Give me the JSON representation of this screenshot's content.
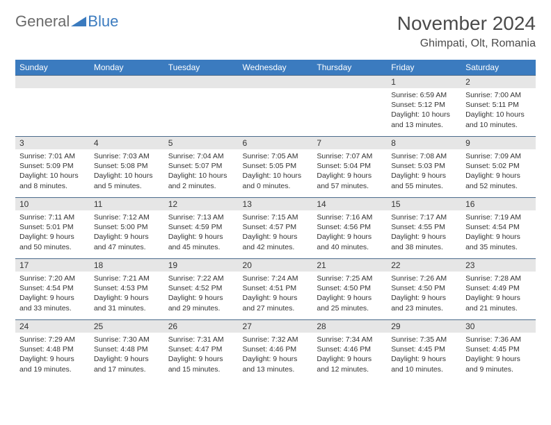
{
  "logo": {
    "word1": "General",
    "word2": "Blue"
  },
  "title": {
    "month": "November 2024",
    "location": "Ghimpati, Olt, Romania"
  },
  "weekdays": [
    "Sunday",
    "Monday",
    "Tuesday",
    "Wednesday",
    "Thursday",
    "Friday",
    "Saturday"
  ],
  "colors": {
    "header_bg": "#3b7bbf",
    "header_text": "#ffffff",
    "daynum_bg": "#e6e6e6",
    "daynum_border": "#4a6a8a",
    "body_text": "#333333",
    "logo_gray": "#6a6a6a",
    "logo_blue": "#3b7bbf",
    "page_bg": "#ffffff"
  },
  "weeks": [
    [
      null,
      null,
      null,
      null,
      null,
      {
        "n": "1",
        "sr": "Sunrise: 6:59 AM",
        "ss": "Sunset: 5:12 PM",
        "dl": "Daylight: 10 hours and 13 minutes."
      },
      {
        "n": "2",
        "sr": "Sunrise: 7:00 AM",
        "ss": "Sunset: 5:11 PM",
        "dl": "Daylight: 10 hours and 10 minutes."
      }
    ],
    [
      {
        "n": "3",
        "sr": "Sunrise: 7:01 AM",
        "ss": "Sunset: 5:09 PM",
        "dl": "Daylight: 10 hours and 8 minutes."
      },
      {
        "n": "4",
        "sr": "Sunrise: 7:03 AM",
        "ss": "Sunset: 5:08 PM",
        "dl": "Daylight: 10 hours and 5 minutes."
      },
      {
        "n": "5",
        "sr": "Sunrise: 7:04 AM",
        "ss": "Sunset: 5:07 PM",
        "dl": "Daylight: 10 hours and 2 minutes."
      },
      {
        "n": "6",
        "sr": "Sunrise: 7:05 AM",
        "ss": "Sunset: 5:05 PM",
        "dl": "Daylight: 10 hours and 0 minutes."
      },
      {
        "n": "7",
        "sr": "Sunrise: 7:07 AM",
        "ss": "Sunset: 5:04 PM",
        "dl": "Daylight: 9 hours and 57 minutes."
      },
      {
        "n": "8",
        "sr": "Sunrise: 7:08 AM",
        "ss": "Sunset: 5:03 PM",
        "dl": "Daylight: 9 hours and 55 minutes."
      },
      {
        "n": "9",
        "sr": "Sunrise: 7:09 AM",
        "ss": "Sunset: 5:02 PM",
        "dl": "Daylight: 9 hours and 52 minutes."
      }
    ],
    [
      {
        "n": "10",
        "sr": "Sunrise: 7:11 AM",
        "ss": "Sunset: 5:01 PM",
        "dl": "Daylight: 9 hours and 50 minutes."
      },
      {
        "n": "11",
        "sr": "Sunrise: 7:12 AM",
        "ss": "Sunset: 5:00 PM",
        "dl": "Daylight: 9 hours and 47 minutes."
      },
      {
        "n": "12",
        "sr": "Sunrise: 7:13 AM",
        "ss": "Sunset: 4:59 PM",
        "dl": "Daylight: 9 hours and 45 minutes."
      },
      {
        "n": "13",
        "sr": "Sunrise: 7:15 AM",
        "ss": "Sunset: 4:57 PM",
        "dl": "Daylight: 9 hours and 42 minutes."
      },
      {
        "n": "14",
        "sr": "Sunrise: 7:16 AM",
        "ss": "Sunset: 4:56 PM",
        "dl": "Daylight: 9 hours and 40 minutes."
      },
      {
        "n": "15",
        "sr": "Sunrise: 7:17 AM",
        "ss": "Sunset: 4:55 PM",
        "dl": "Daylight: 9 hours and 38 minutes."
      },
      {
        "n": "16",
        "sr": "Sunrise: 7:19 AM",
        "ss": "Sunset: 4:54 PM",
        "dl": "Daylight: 9 hours and 35 minutes."
      }
    ],
    [
      {
        "n": "17",
        "sr": "Sunrise: 7:20 AM",
        "ss": "Sunset: 4:54 PM",
        "dl": "Daylight: 9 hours and 33 minutes."
      },
      {
        "n": "18",
        "sr": "Sunrise: 7:21 AM",
        "ss": "Sunset: 4:53 PM",
        "dl": "Daylight: 9 hours and 31 minutes."
      },
      {
        "n": "19",
        "sr": "Sunrise: 7:22 AM",
        "ss": "Sunset: 4:52 PM",
        "dl": "Daylight: 9 hours and 29 minutes."
      },
      {
        "n": "20",
        "sr": "Sunrise: 7:24 AM",
        "ss": "Sunset: 4:51 PM",
        "dl": "Daylight: 9 hours and 27 minutes."
      },
      {
        "n": "21",
        "sr": "Sunrise: 7:25 AM",
        "ss": "Sunset: 4:50 PM",
        "dl": "Daylight: 9 hours and 25 minutes."
      },
      {
        "n": "22",
        "sr": "Sunrise: 7:26 AM",
        "ss": "Sunset: 4:50 PM",
        "dl": "Daylight: 9 hours and 23 minutes."
      },
      {
        "n": "23",
        "sr": "Sunrise: 7:28 AM",
        "ss": "Sunset: 4:49 PM",
        "dl": "Daylight: 9 hours and 21 minutes."
      }
    ],
    [
      {
        "n": "24",
        "sr": "Sunrise: 7:29 AM",
        "ss": "Sunset: 4:48 PM",
        "dl": "Daylight: 9 hours and 19 minutes."
      },
      {
        "n": "25",
        "sr": "Sunrise: 7:30 AM",
        "ss": "Sunset: 4:48 PM",
        "dl": "Daylight: 9 hours and 17 minutes."
      },
      {
        "n": "26",
        "sr": "Sunrise: 7:31 AM",
        "ss": "Sunset: 4:47 PM",
        "dl": "Daylight: 9 hours and 15 minutes."
      },
      {
        "n": "27",
        "sr": "Sunrise: 7:32 AM",
        "ss": "Sunset: 4:46 PM",
        "dl": "Daylight: 9 hours and 13 minutes."
      },
      {
        "n": "28",
        "sr": "Sunrise: 7:34 AM",
        "ss": "Sunset: 4:46 PM",
        "dl": "Daylight: 9 hours and 12 minutes."
      },
      {
        "n": "29",
        "sr": "Sunrise: 7:35 AM",
        "ss": "Sunset: 4:45 PM",
        "dl": "Daylight: 9 hours and 10 minutes."
      },
      {
        "n": "30",
        "sr": "Sunrise: 7:36 AM",
        "ss": "Sunset: 4:45 PM",
        "dl": "Daylight: 9 hours and 9 minutes."
      }
    ]
  ]
}
